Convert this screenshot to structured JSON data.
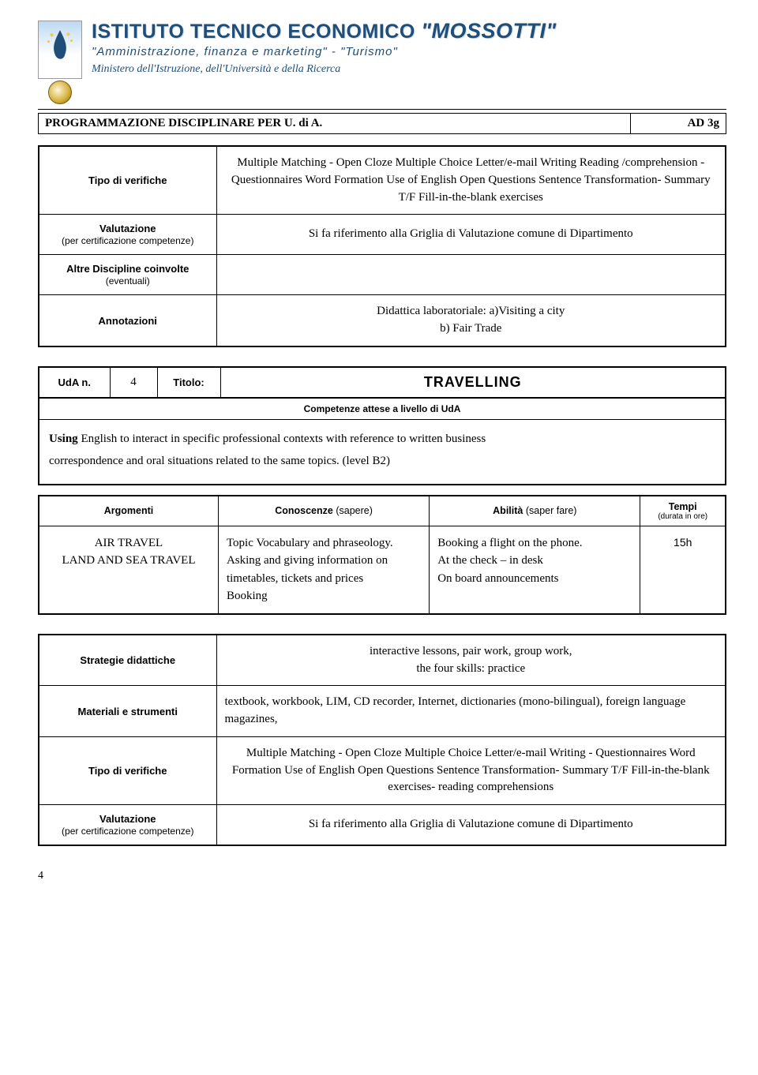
{
  "header": {
    "title_prefix": "ISTITUTO TECNICO ECONOMICO ",
    "title_name": "\"MOSSOTTI\"",
    "subtitle1": "\"Amministrazione, finanza e marketing\" - \"Turismo\"",
    "subtitle2": "Ministero dell'Istruzione, dell'Università e della Ricerca"
  },
  "docbar": {
    "left": "PROGRAMMAZIONE DISCIPLINARE PER U. di A.",
    "right": "AD 3g"
  },
  "block1": {
    "rows": [
      {
        "label": "Tipo di verifiche",
        "value": "Multiple Matching - Open Cloze Multiple Choice Letter/e-mail Writing Reading /comprehension - Questionnaires Word Formation Use of English Open Questions Sentence Transformation- Summary T/F Fill-in-the-blank exercises"
      },
      {
        "label": "Valutazione",
        "sublabel": "(per certificazione competenze)",
        "value": "Si fa riferimento alla Griglia di Valutazione comune di Dipartimento"
      },
      {
        "label": "Altre Discipline coinvolte",
        "sublabel": "(eventuali)",
        "value": ""
      },
      {
        "label": "Annotazioni",
        "value": "Didattica laboratoriale: a)Visiting a city\nb) Fair Trade"
      }
    ]
  },
  "uda": {
    "uda_label": "UdA n.",
    "uda_num": "4",
    "titolo_label": "Titolo:",
    "titolo": "TRAVELLING",
    "comp_heading": "Competenze attese a livello di UdA",
    "comp_body": "Using English to interact in specific professional contexts with reference to written business correspondence and oral situations related to the same topics. (level B2)"
  },
  "ask": {
    "headers": {
      "arg": "Argomenti",
      "con_label": "Conoscenze",
      "con_sub": " (sapere)",
      "abi_label": "Abilità",
      "abi_sub": " (saper fare)",
      "tem_label": "Tempi",
      "tem_sub": "(durata in ore)"
    },
    "row": {
      "argomenti": "AIR TRAVEL\nLAND AND SEA TRAVEL",
      "conoscenze": "Topic Vocabulary and phraseology.\nAsking and giving information on timetables, tickets and prices\nBooking",
      "abilita": "Booking a flight on the phone.\nAt the check – in desk\nOn board announcements",
      "tempi": "15h"
    }
  },
  "block2": {
    "rows": [
      {
        "label": "Strategie didattiche",
        "value": "interactive lessons, pair work, group work,\nthe four skills: practice"
      },
      {
        "label": "Materiali e strumenti",
        "value": "textbook, workbook, LIM, CD recorder, Internet, dictionaries (mono-bilingual), foreign language magazines,"
      },
      {
        "label": "Tipo di verifiche",
        "value": "Multiple Matching - Open Cloze Multiple Choice Letter/e-mail Writing - Questionnaires Word Formation Use of English Open Questions Sentence Transformation- Summary T/F Fill-in-the-blank exercises- reading comprehensions"
      },
      {
        "label": "Valutazione",
        "sublabel": "(per certificazione competenze)",
        "value": "Si fa riferimento alla Griglia di Valutazione comune di Dipartimento"
      }
    ]
  },
  "page_number": "4"
}
